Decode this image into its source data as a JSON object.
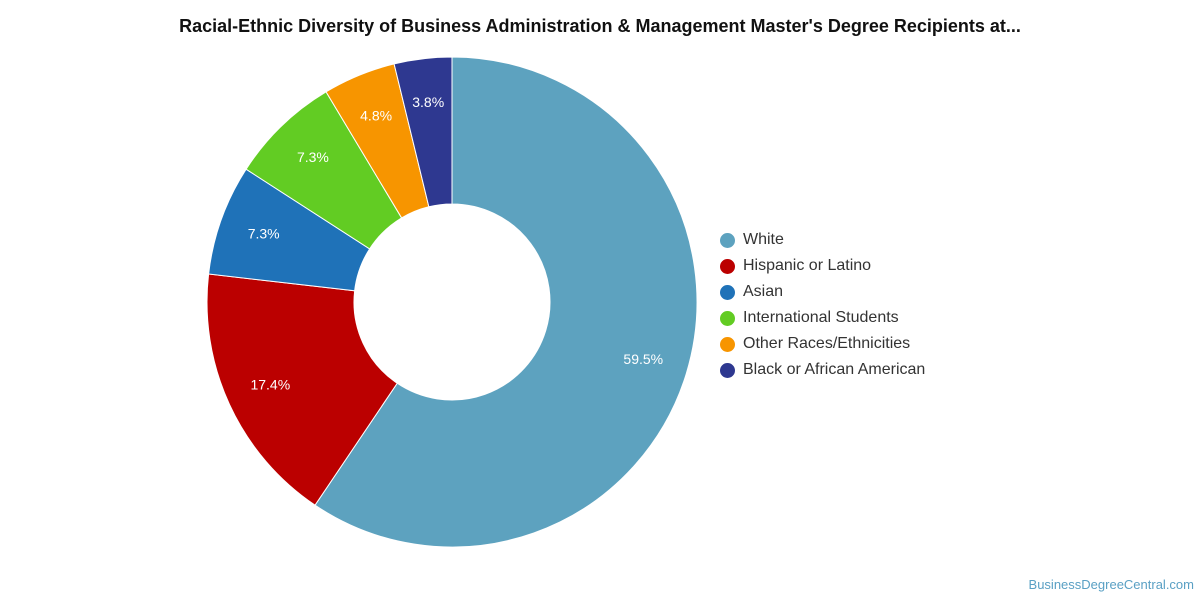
{
  "chart_data": {
    "type": "pie",
    "variant": "donut",
    "title": "Racial-Ethnic Diversity of Business Administration & Management Master's Degree Recipients at...",
    "slices": [
      {
        "name": "White",
        "value": 59.5,
        "label": "59.5%",
        "color": "#5da2bf"
      },
      {
        "name": "Hispanic or Latino",
        "value": 17.4,
        "label": "17.4%",
        "color": "#bb0000"
      },
      {
        "name": "Asian",
        "value": 7.3,
        "label": "7.3%",
        "color": "#1f72b8"
      },
      {
        "name": "International Students",
        "value": 7.3,
        "label": "7.3%",
        "color": "#62cc23"
      },
      {
        "name": "Other Races/Ethnicities",
        "value": 4.8,
        "label": "4.8%",
        "color": "#f79500"
      },
      {
        "name": "Black or African American",
        "value": 3.8,
        "label": "3.8%",
        "color": "#2e3890"
      }
    ],
    "legend_position": "right"
  },
  "credit": "BusinessDegreeCentral.com"
}
